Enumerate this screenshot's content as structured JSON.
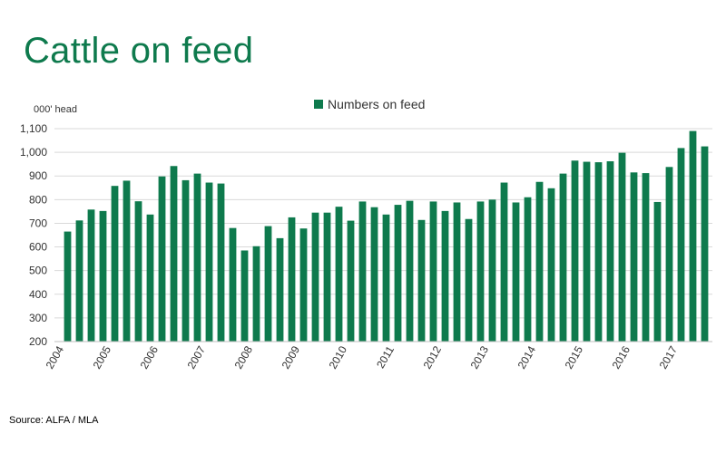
{
  "page": {
    "title": "Cattle on feed",
    "source": "Source: ALFA / MLA"
  },
  "chart_data": {
    "type": "bar",
    "title": "Cattle on feed",
    "ylabel": "000' head",
    "xlabel": "",
    "ylim": [
      200,
      1100
    ],
    "yticks": [
      200,
      300,
      400,
      500,
      600,
      700,
      800,
      900,
      1000,
      1100
    ],
    "ytick_labels": [
      "200",
      "300",
      "400",
      "500",
      "600",
      "700",
      "800",
      "900",
      "1,000",
      "1,100"
    ],
    "grid": true,
    "legend_position": "top-center",
    "bar_color": "#0e7a4d",
    "series": [
      {
        "name": "Numbers on feed",
        "values": [
          665,
          712,
          758,
          752,
          858,
          880,
          793,
          737,
          898,
          942,
          882,
          910,
          872,
          868,
          680,
          585,
          603,
          688,
          637,
          725,
          678,
          745,
          745,
          770,
          711,
          792,
          768,
          737,
          778,
          795,
          714,
          792,
          752,
          788,
          718,
          792,
          800,
          872,
          788,
          810,
          875,
          848,
          910,
          965,
          960,
          958,
          962,
          998,
          915,
          912,
          790,
          938,
          1018,
          1090,
          1025
        ]
      }
    ],
    "categories": [
      "2004 Q1",
      "2004 Q2",
      "2004 Q3",
      "2004 Q4",
      "2005 Q1",
      "2005 Q2",
      "2005 Q3",
      "2005 Q4",
      "2006 Q1",
      "2006 Q2",
      "2006 Q3",
      "2006 Q4",
      "2007 Q1",
      "2007 Q2",
      "2007 Q3",
      "2007 Q4",
      "2008 Q1",
      "2008 Q2",
      "2008 Q3",
      "2008 Q4",
      "2009 Q1",
      "2009 Q2",
      "2009 Q3",
      "2009 Q4",
      "2010 Q1",
      "2010 Q2",
      "2010 Q3",
      "2010 Q4",
      "2011 Q1",
      "2011 Q2",
      "2011 Q3",
      "2011 Q4",
      "2012 Q1",
      "2012 Q2",
      "2012 Q3",
      "2012 Q4",
      "2013 Q1",
      "2013 Q2",
      "2013 Q3",
      "2013 Q4",
      "2014 Q1",
      "2014 Q2",
      "2014 Q3",
      "2014 Q4",
      "2015 Q1",
      "2015 Q2",
      "2015 Q3",
      "2015 Q4",
      "2016 Q1",
      "2016 Q2",
      "2016 Q3",
      "2016 Q4",
      "2017 Q1",
      "2017 Q2",
      "2017 Q3"
    ],
    "xtick_labels": [
      "2004",
      "2005",
      "2006",
      "2007",
      "2008",
      "2009",
      "2010",
      "2011",
      "2012",
      "2013",
      "2014",
      "2015",
      "2016",
      "2017"
    ]
  }
}
